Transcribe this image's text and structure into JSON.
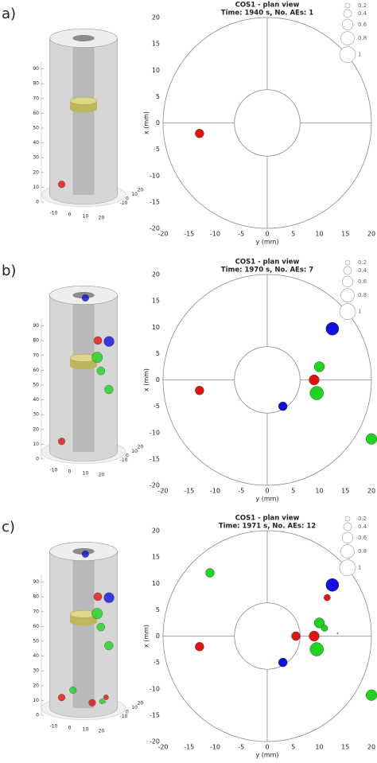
{
  "chart_data": [
    {
      "panel_label": "a)",
      "type": "scatter",
      "title": "COS1 - plan view",
      "subtitle": "Time: 1940 s, No. AEs: 1",
      "xlabel": "y (mm)",
      "ylabel": "x (mm)",
      "xlim": [
        -20,
        20
      ],
      "ylim": [
        -20,
        20
      ],
      "xticks": [
        -20,
        -15,
        -10,
        -5,
        0,
        5,
        10,
        15,
        20
      ],
      "yticks": [
        -20,
        -15,
        -10,
        -5,
        0,
        5,
        10,
        15,
        20
      ],
      "x": [
        -13
      ],
      "values": [
        -2
      ],
      "sizes": [
        0.45
      ],
      "z": [
        6
      ],
      "colors": [
        "#e3140f"
      ],
      "size_legend": [
        0.2,
        0.4,
        0.6,
        0.8,
        1
      ],
      "outer_radius": 20,
      "inner_radius": 6.3,
      "zticks": [
        0,
        10,
        20,
        30,
        40,
        50,
        60,
        70,
        80,
        90
      ],
      "view_yticks": [
        -10,
        0,
        10,
        20
      ],
      "view_xticks": [
        -10,
        0,
        10,
        20
      ]
    },
    {
      "panel_label": "b)",
      "type": "scatter",
      "title": "COS1 - plan view",
      "subtitle": "Time: 1970 s, No. AEs: 7",
      "xlabel": "y (mm)",
      "ylabel": "x (mm)",
      "xlim": [
        -20,
        20
      ],
      "ylim": [
        -20,
        20
      ],
      "xticks": [
        -20,
        -15,
        -10,
        -5,
        0,
        5,
        10,
        15,
        20
      ],
      "yticks": [
        -20,
        -15,
        -10,
        -5,
        0,
        5,
        10,
        15,
        20
      ],
      "x": [
        -13,
        3,
        9,
        12.5,
        10,
        9.5,
        20
      ],
      "values": [
        -2,
        -5,
        0,
        9.7,
        2.5,
        -2.5,
        -11.2
      ],
      "sizes": [
        0.45,
        0.45,
        0.55,
        0.75,
        0.55,
        0.8,
        0.6
      ],
      "z": [
        6,
        100,
        72,
        69,
        52,
        62,
        45
      ],
      "colors": [
        "#e3140f",
        "#1010e0",
        "#e3140f",
        "#1010e0",
        "#1ed41e",
        "#1ed41e",
        "#1ed41e"
      ],
      "size_legend": [
        0.2,
        0.4,
        0.6,
        0.8,
        1
      ],
      "outer_radius": 20,
      "inner_radius": 6.3,
      "zticks": [
        0,
        10,
        20,
        30,
        40,
        50,
        60,
        70,
        80,
        90
      ],
      "view_yticks": [
        -10,
        0,
        10,
        20
      ],
      "view_xticks": [
        -10,
        0,
        10,
        20
      ]
    },
    {
      "panel_label": "c)",
      "type": "scatter",
      "title": "COS1 - plan view",
      "subtitle": "Time: 1971 s, No. AEs: 12",
      "xlabel": "y (mm)",
      "ylabel": "x (mm)",
      "xlim": [
        -20,
        20
      ],
      "ylim": [
        -20,
        20
      ],
      "xticks": [
        -20,
        -15,
        -10,
        -5,
        0,
        5,
        10,
        15,
        20
      ],
      "yticks": [
        -20,
        -15,
        -10,
        -5,
        0,
        5,
        10,
        15,
        20
      ],
      "x": [
        -13,
        3,
        9,
        12.5,
        10,
        9.5,
        20,
        -11,
        11.5,
        5.5,
        11,
        13.5
      ],
      "values": [
        -2,
        -5,
        0,
        9.7,
        2.5,
        -2.5,
        -11.2,
        12,
        7.3,
        0,
        1.5,
        0.5
      ],
      "sizes": [
        0.45,
        0.45,
        0.55,
        0.75,
        0.55,
        0.8,
        0.6,
        0.45,
        0.3,
        0.45,
        0.3,
        0.03
      ],
      "z": [
        6,
        100,
        72,
        69,
        52,
        62,
        45,
        7,
        6,
        4,
        5,
        5
      ],
      "colors": [
        "#e3140f",
        "#1010e0",
        "#e3140f",
        "#1010e0",
        "#1ed41e",
        "#1ed41e",
        "#1ed41e",
        "#1ed41e",
        "#e3140f",
        "#e3140f",
        "#1ed41e",
        "#1ed41e"
      ],
      "size_legend": [
        0.2,
        0.4,
        0.6,
        0.8,
        1
      ],
      "outer_radius": 20,
      "inner_radius": 6.3,
      "zticks": [
        0,
        10,
        20,
        30,
        40,
        50,
        60,
        70,
        80,
        90
      ],
      "view_yticks": [
        -10,
        0,
        10,
        20
      ],
      "view_xticks": [
        -10,
        0,
        10,
        20
      ]
    }
  ]
}
